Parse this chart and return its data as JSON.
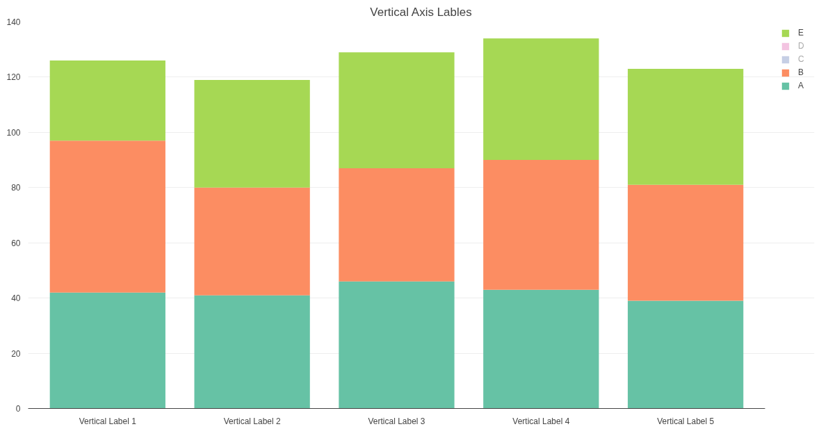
{
  "chart_data": {
    "type": "bar",
    "title": "Vertical Axis Lables",
    "categories": [
      "Vertical Label 1",
      "Vertical Label 2",
      "Vertical Label 3",
      "Vertical Label 4",
      "Vertical Label 5"
    ],
    "stacked": true,
    "series": [
      {
        "name": "A",
        "color": "#66c2a5",
        "values": [
          42,
          41,
          46,
          43,
          39
        ]
      },
      {
        "name": "B",
        "color": "#fc8d62",
        "values": [
          55,
          39,
          41,
          47,
          42
        ]
      },
      {
        "name": "C",
        "color": "#8da0cb",
        "values": [
          null,
          null,
          null,
          null,
          null
        ]
      },
      {
        "name": "D",
        "color": "#e78ac3",
        "values": [
          null,
          null,
          null,
          null,
          null
        ]
      },
      {
        "name": "E",
        "color": "#a6d854",
        "values": [
          29,
          39,
          42,
          44,
          42
        ]
      }
    ],
    "ylim": [
      0,
      140
    ],
    "yticks": [
      0,
      20,
      40,
      60,
      80,
      100,
      120,
      140
    ],
    "grid": "y",
    "legend": "top right"
  }
}
